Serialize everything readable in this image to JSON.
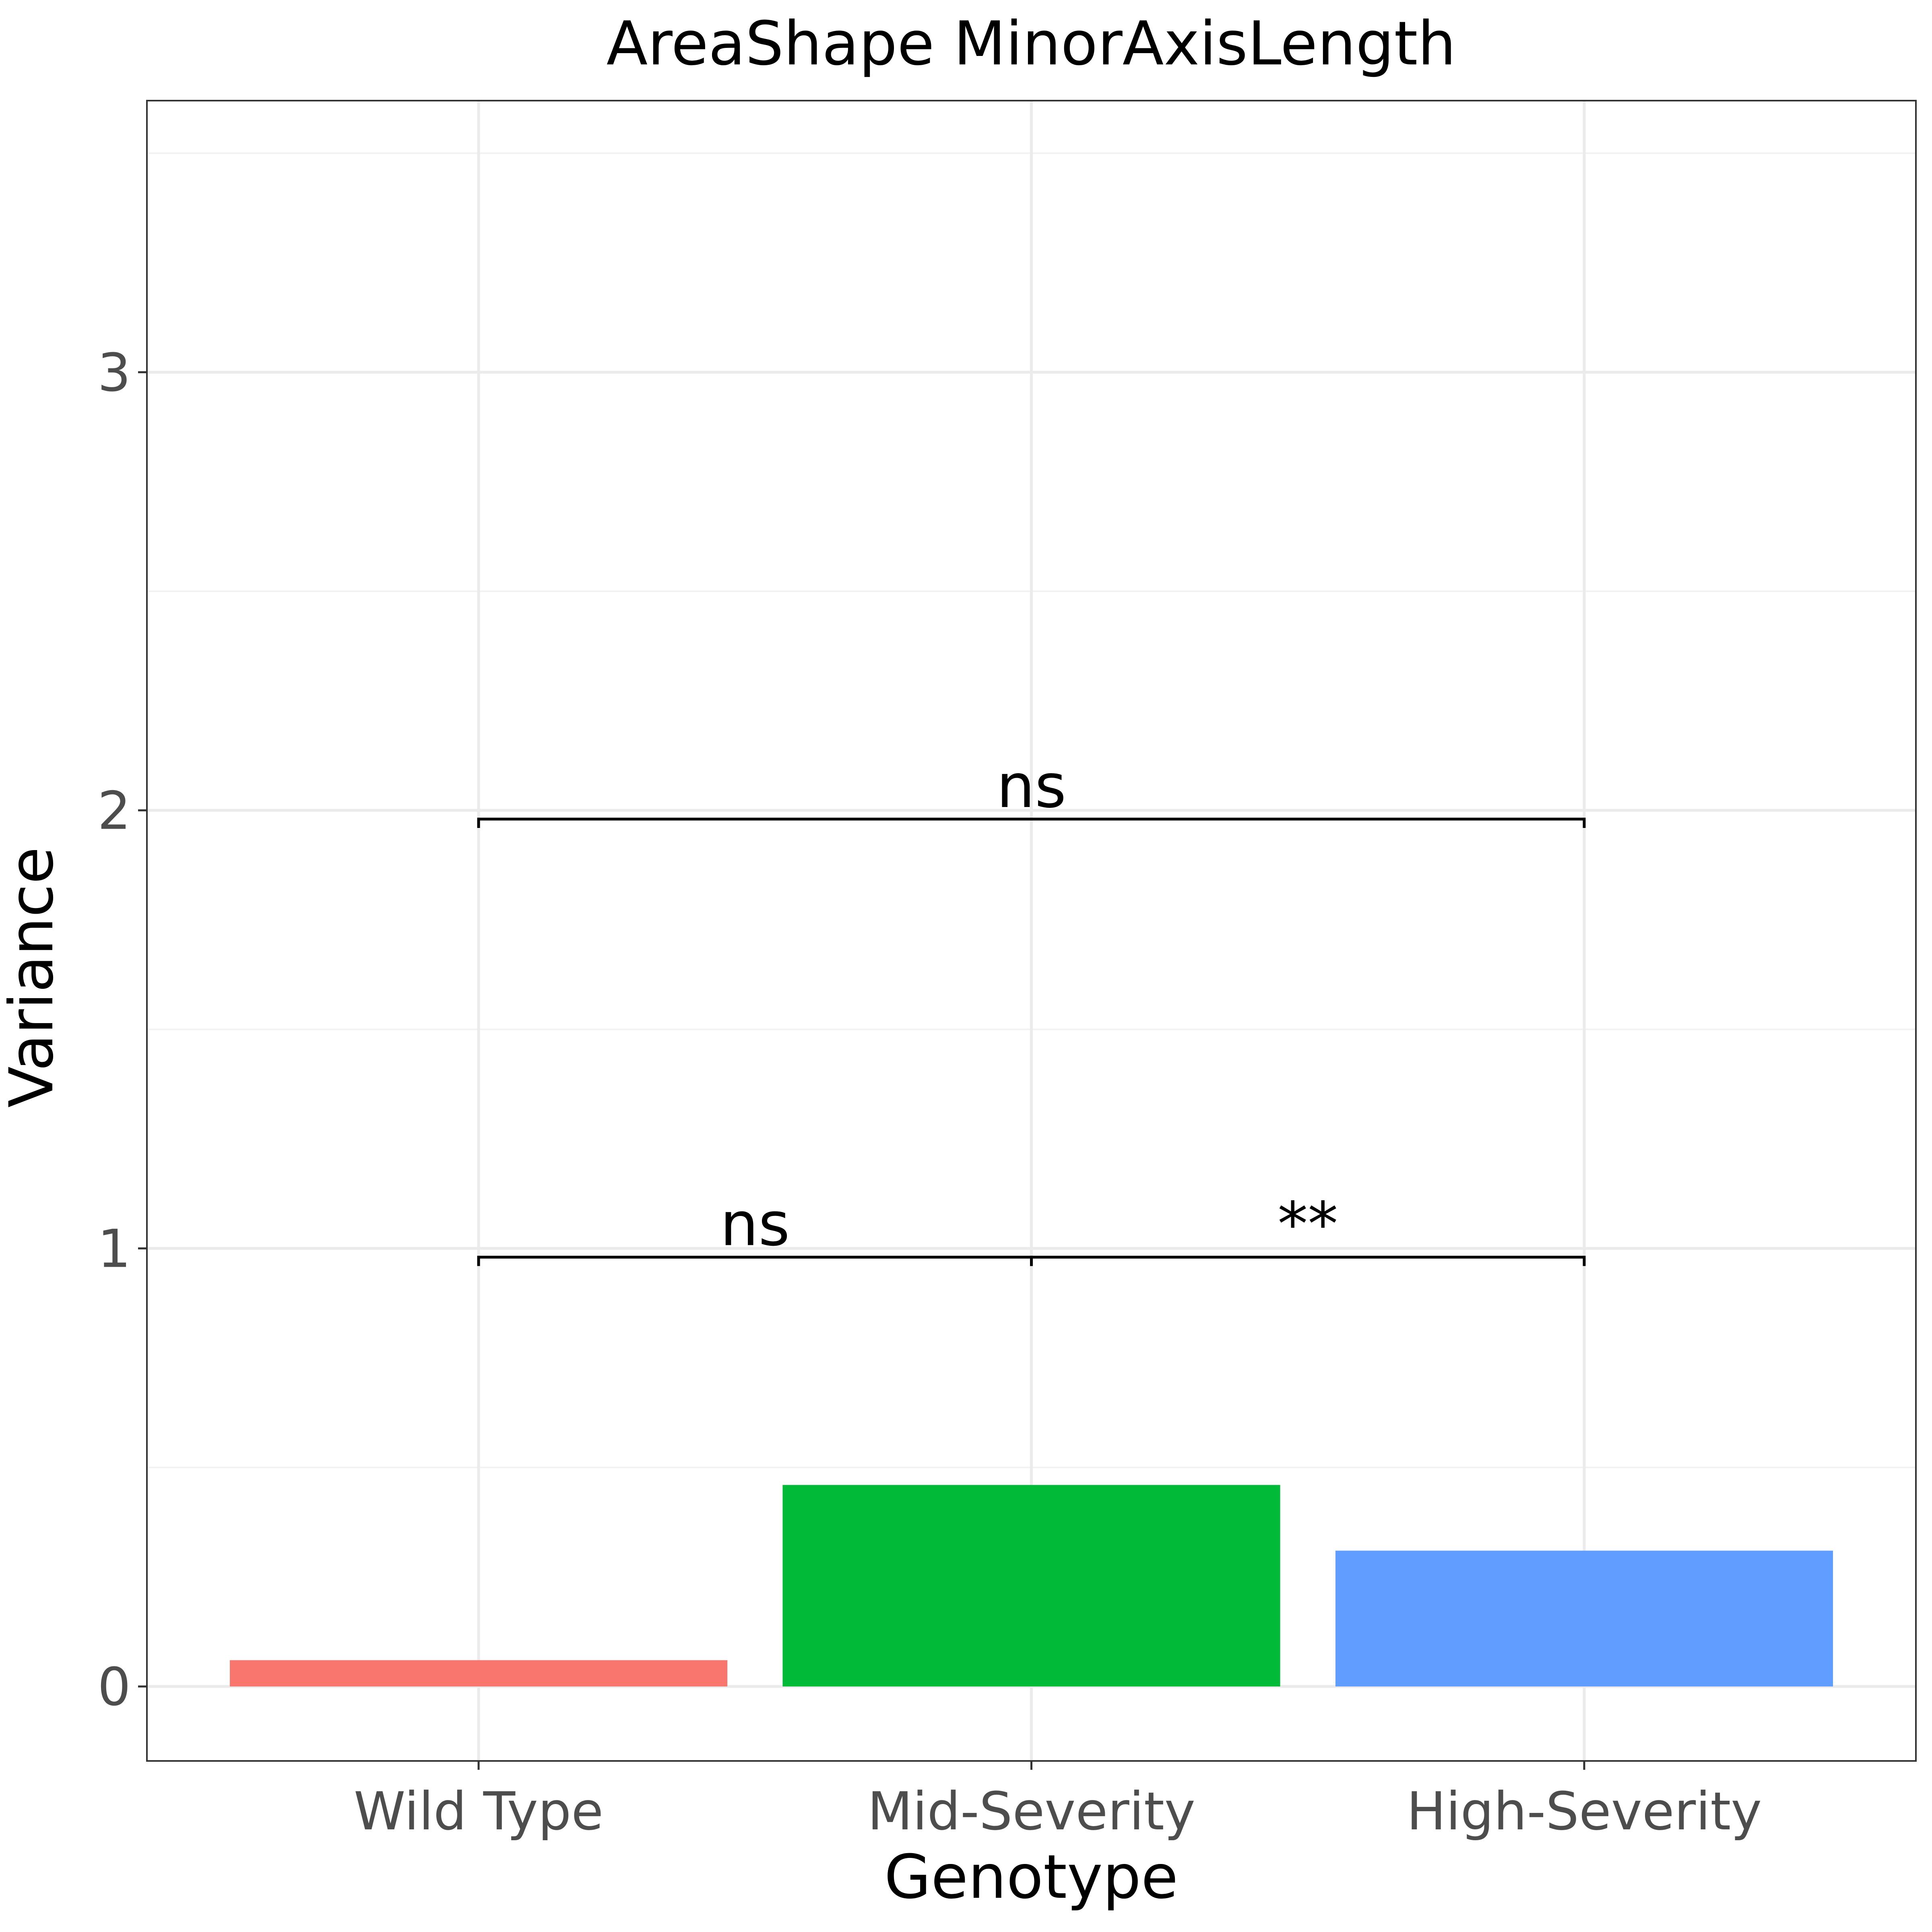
{
  "chart_data": {
    "type": "bar",
    "title": "AreaShape MinorAxisLength",
    "xlabel": "Genotype",
    "ylabel": "Variance",
    "categories": [
      "Wild Type",
      "Mid-Severity",
      "High-Severity"
    ],
    "values": [
      0.06,
      0.46,
      0.31
    ],
    "colors": [
      "#F8766D",
      "#00BA38",
      "#619CFF"
    ],
    "ylim": [
      -0.17,
      3.62
    ],
    "yticks": [
      0,
      1,
      2,
      3
    ],
    "grid": true,
    "legend": "none",
    "comparisons": [
      {
        "from": "Wild Type",
        "to": "Mid-Severity",
        "y": 0.98,
        "label": "ns"
      },
      {
        "from": "Mid-Severity",
        "to": "High-Severity",
        "y": 0.98,
        "label": "**"
      },
      {
        "from": "Wild Type",
        "to": "High-Severity",
        "y": 1.98,
        "label": "ns"
      }
    ]
  }
}
